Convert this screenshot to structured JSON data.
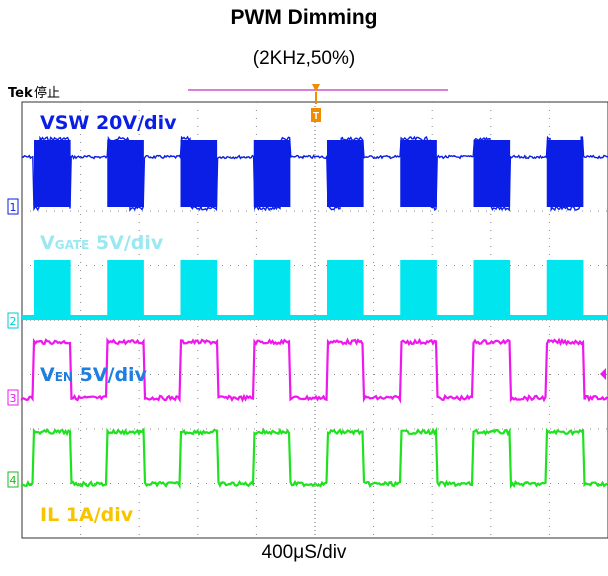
{
  "title": "PWM Dimming",
  "subtitle": "(2KHz,50%)",
  "timebase_label": "400μS/div",
  "scope": {
    "brand": "Tek",
    "status": "停止",
    "trigger_marker": "T"
  },
  "chart_data": {
    "type": "line",
    "title": "PWM Dimming",
    "subtitle": "(2KHz,50%)",
    "xlabel": "400μS/div",
    "pwm_frequency_khz": 2,
    "pwm_duty_percent": 50,
    "time_div_us": 400,
    "divisions": 10,
    "grid": true,
    "series": [
      {
        "name": "VSW",
        "label_main": "VSW 20V/div",
        "scale": "20V/div",
        "channel": "1",
        "color": "#0a1ee6",
        "shape": "burst"
      },
      {
        "name": "VGATE",
        "label_main": "V",
        "label_sub": "GATE",
        "label_rest": " 5V/div",
        "scale": "5V/div",
        "channel": "2",
        "color": "#00e5ee",
        "shape": "pulse"
      },
      {
        "name": "VEN",
        "label_main": "V",
        "label_sub": "EN",
        "label_rest": " 5V/div",
        "scale": "5V/div",
        "channel": "3",
        "color": "#ee18ee",
        "shape": "square"
      },
      {
        "name": "IL",
        "label_main": "IL 1A/div",
        "scale": "1A/div",
        "channel": "4",
        "color": "#1fe21f",
        "shape": "square"
      }
    ]
  }
}
